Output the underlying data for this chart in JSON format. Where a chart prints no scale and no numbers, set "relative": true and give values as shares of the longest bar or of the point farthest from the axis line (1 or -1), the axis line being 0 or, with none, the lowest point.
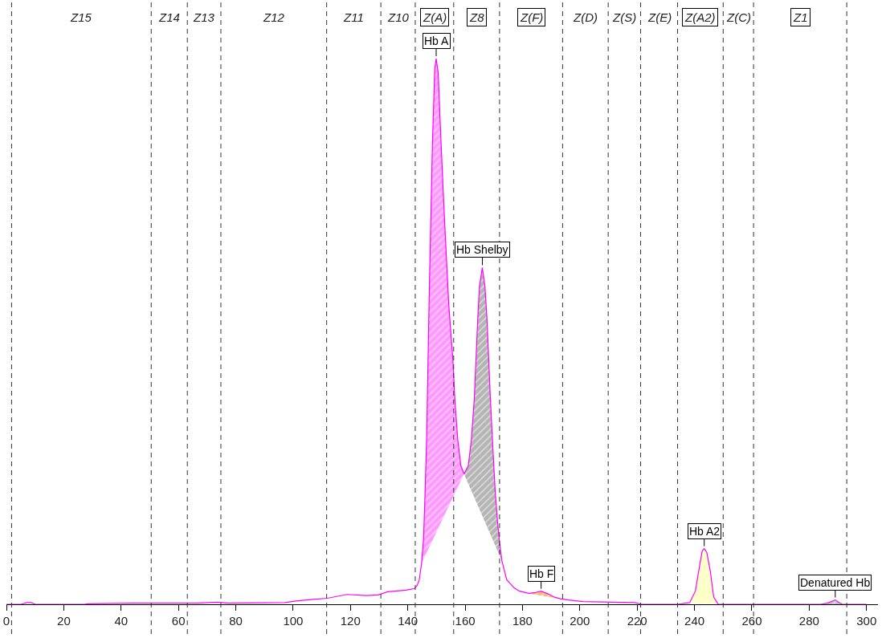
{
  "chart_data": {
    "type": "line",
    "relative": true,
    "tick_labels": "x",
    "xlim": [
      0,
      304
    ],
    "xticks": [
      0,
      20,
      40,
      60,
      80,
      100,
      120,
      140,
      160,
      180,
      200,
      220,
      240,
      260,
      280,
      300
    ],
    "series": [
      {
        "type": "area",
        "color": "#ff99ff",
        "x": [
          144.8,
          145.5,
          146.0,
          146.6,
          147.5,
          148.6,
          149.4,
          149.9,
          150.6,
          151.4,
          152.2,
          152.9,
          154.3,
          155.7,
          156.4,
          157.4,
          158.5,
          159.6
        ],
        "values": [
          0.075,
          0.12,
          0.2,
          0.31,
          0.576,
          0.846,
          0.981,
          1,
          0.974,
          0.87,
          0.775,
          0.695,
          0.548,
          0.45,
          0.377,
          0.303,
          0.254,
          0.239
        ]
      },
      {
        "type": "area",
        "color": "#b4b4b4",
        "x": [
          159.6,
          161.1,
          162.2,
          163.2,
          163.8,
          164.4,
          165.0,
          166.0,
          166.9,
          167.6,
          168.2,
          168.8,
          169.5,
          170.5,
          171.3,
          172.0,
          172.8
        ],
        "values": [
          0.239,
          0.254,
          0.303,
          0.377,
          0.45,
          0.524,
          0.583,
          0.617,
          0.583,
          0.524,
          0.45,
          0.377,
          0.303,
          0.205,
          0.151,
          0.113,
          0.08
        ]
      },
      {
        "type": "area",
        "color": "#f8b878",
        "x": [
          182.2,
          184.0,
          186.5,
          189.0,
          191.2,
          193.2
        ],
        "values": [
          0.02,
          0.021,
          0.024,
          0.019,
          0.013,
          0.01
        ]
      },
      {
        "type": "area",
        "color": "#ffffc0",
        "x": [
          238.3,
          240.3,
          241.8,
          242.7,
          243.4,
          244.3,
          245.5,
          246.7,
          248.3
        ],
        "values": [
          0.003,
          0.024,
          0.071,
          0.098,
          0.102,
          0.095,
          0.061,
          0.013,
          0
        ]
      },
      {
        "type": "area",
        "color": "#c0c0c0",
        "x": [
          284.0,
          286.3,
          289.1,
          290.5,
          291.5
        ],
        "values": [
          0,
          0.002,
          0.008,
          0.003,
          0
        ]
      },
      {
        "color": "#ff00ff",
        "x": [
          0,
          2.7,
          5.1,
          7.1,
          8.6,
          10.1,
          27.3,
          28.3,
          44.0,
          66.6,
          73.5,
          77.4,
          97.1,
          101.0,
          107.0,
          111.9,
          118.8,
          125.6,
          129.6,
          133.0,
          139.4,
          142.4,
          143.3,
          144.0,
          144.8,
          145.5,
          146.0,
          146.6,
          147.5,
          148.6,
          149.4,
          149.9,
          150.6,
          151.4,
          152.2,
          152.9,
          154.3,
          155.7,
          156.4,
          157.4,
          158.5,
          159.6,
          161.1,
          162.2,
          163.2,
          163.8,
          164.4,
          165.0,
          166.0,
          166.9,
          167.6,
          168.2,
          168.8,
          169.5,
          170.5,
          171.3,
          172.0,
          172.8,
          174.5,
          177.1,
          179.0,
          182.2,
          184.0,
          186.5,
          189.0,
          191.2,
          193.2,
          196.0,
          201.2,
          219.2,
          221.5,
          234.2,
          238.3,
          240.3,
          241.8,
          242.7,
          243.4,
          244.3,
          245.5,
          246.7,
          248.3,
          284.0,
          286.3,
          289.1,
          290.5,
          291.5,
          300
        ],
        "values": [
          0,
          0,
          0,
          0.003,
          0.003,
          0,
          0,
          0.001,
          0.002,
          0.002,
          0.004,
          0.002,
          0.003,
          0.006,
          0.009,
          0.011,
          0.018,
          0.016,
          0.017,
          0.023,
          0.026,
          0.029,
          0.035,
          0.045,
          0.075,
          0.12,
          0.2,
          0.31,
          0.576,
          0.846,
          0.981,
          1,
          0.974,
          0.87,
          0.775,
          0.695,
          0.548,
          0.45,
          0.377,
          0.303,
          0.254,
          0.239,
          0.254,
          0.303,
          0.377,
          0.45,
          0.524,
          0.583,
          0.617,
          0.583,
          0.524,
          0.45,
          0.377,
          0.303,
          0.205,
          0.151,
          0.113,
          0.08,
          0.045,
          0.03,
          0.024,
          0.02,
          0.021,
          0.024,
          0.019,
          0.013,
          0.01,
          0.008,
          0.005,
          0.003,
          0,
          0,
          0.003,
          0.024,
          0.071,
          0.098,
          0.102,
          0.095,
          0.061,
          0.013,
          0,
          0,
          0.002,
          0.008,
          0.003,
          0,
          0
        ]
      }
    ],
    "ref_lines": [
      {
        "axis": "x",
        "value": 1.8,
        "line_style": "dashed"
      },
      {
        "axis": "x",
        "value": 50.5,
        "line_style": "dashed"
      },
      {
        "axis": "x",
        "value": 63.1,
        "line_style": "dashed"
      },
      {
        "axis": "x",
        "value": 74.8,
        "line_style": "dashed"
      },
      {
        "axis": "x",
        "value": 111.7,
        "line_style": "dashed"
      },
      {
        "axis": "x",
        "value": 130.6,
        "line_style": "dashed"
      },
      {
        "axis": "x",
        "value": 142.6,
        "line_style": "dashed"
      },
      {
        "axis": "x",
        "value": 156.0,
        "line_style": "dashed"
      },
      {
        "axis": "x",
        "value": 172.0,
        "line_style": "dashed"
      },
      {
        "axis": "x",
        "value": 194.0,
        "line_style": "dashed"
      },
      {
        "axis": "x",
        "value": 209.9,
        "line_style": "dashed"
      },
      {
        "axis": "x",
        "value": 221.2,
        "line_style": "dashed"
      },
      {
        "axis": "x",
        "value": 234.1,
        "line_style": "dashed"
      },
      {
        "axis": "x",
        "value": 250.0,
        "line_style": "dashed"
      },
      {
        "axis": "x",
        "value": 260.6,
        "line_style": "dashed"
      },
      {
        "axis": "x",
        "value": 293.1,
        "line_style": "dashed"
      }
    ],
    "annotations": [
      "Z15",
      "Z14",
      "Z13",
      "Z12",
      "Z11",
      "Z10",
      "Z(A)",
      "Z8",
      "Z(F)",
      "Z(D)",
      "Z(S)",
      "Z(E)",
      "Z(A2)",
      "Z(C)",
      "Z1",
      {
        "text": "Hb A",
        "x": 149.9,
        "y": 1
      },
      {
        "text": "Hb Shelby",
        "x": 166.0,
        "y": 0.617
      },
      {
        "text": "Hb F",
        "x": 186.5,
        "y": 0.024
      },
      {
        "text": "Hb A2",
        "x": 243.4,
        "y": 0.102
      },
      {
        "text": "Denatured Hb",
        "x": 289.1,
        "y": 0.008
      }
    ]
  }
}
